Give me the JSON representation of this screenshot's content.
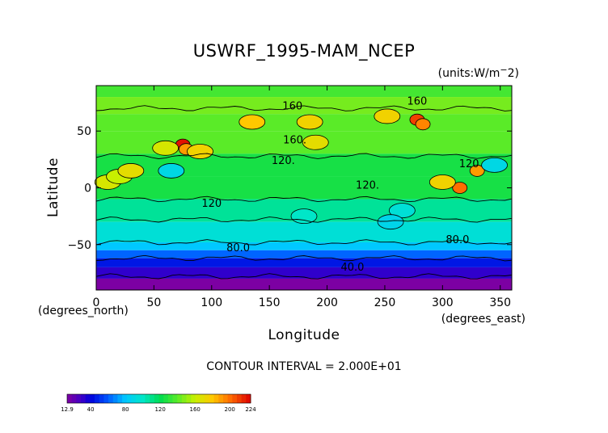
{
  "title": "USWRF_1995-MAM_NCEP",
  "units": "(units:W/m^2)",
  "xlabel": "Longitude",
  "ylabel": "Latitude",
  "x_unit_label": "(degrees_east)",
  "y_unit_label": "(degrees_north)",
  "contour_interval": "CONTOUR INTERVAL = 2.000E+01",
  "chart_data": {
    "type": "heatmap",
    "title": "USWRF_1995-MAM_NCEP",
    "xlabel": "Longitude",
    "ylabel": "Latitude",
    "xlim": [
      0,
      360
    ],
    "ylim": [
      -90,
      90
    ],
    "x_ticks": [
      0,
      50,
      100,
      150,
      200,
      250,
      300,
      350
    ],
    "x_tick_labels": [
      "0",
      "50",
      "100",
      "150",
      "200",
      "250",
      "300",
      "350"
    ],
    "y_ticks": [
      50,
      0,
      -50
    ],
    "y_tick_labels": [
      "50",
      "0",
      "−50"
    ],
    "contour_labels": [
      {
        "text": "160",
        "lon": 170,
        "lat": 72
      },
      {
        "text": "160",
        "lon": 278,
        "lat": 76
      },
      {
        "text": "160.",
        "lon": 172,
        "lat": 42
      },
      {
        "text": "120.",
        "lon": 162,
        "lat": 24
      },
      {
        "text": "120.",
        "lon": 235,
        "lat": 2
      },
      {
        "text": "120",
        "lon": 100,
        "lat": -14
      },
      {
        "text": "120",
        "lon": 323,
        "lat": 21
      },
      {
        "text": "80.0",
        "lon": 123,
        "lat": -53
      },
      {
        "text": "80.0",
        "lon": 313,
        "lat": -46
      },
      {
        "text": "40.0",
        "lon": 222,
        "lat": -70
      }
    ],
    "colorbar": {
      "min": 12.9,
      "max": 224,
      "tick_values": [
        12.9,
        40,
        80,
        120,
        160,
        200,
        224
      ],
      "tick_labels": [
        "12.9",
        "40",
        "80",
        "120",
        "160",
        "200",
        "224"
      ]
    },
    "zonal_bands": [
      {
        "lat_from": 90,
        "lat_to": 80,
        "value": 135
      },
      {
        "lat_from": 80,
        "lat_to": 65,
        "value": 145
      },
      {
        "lat_from": 65,
        "lat_to": 50,
        "value": 140
      },
      {
        "lat_from": 50,
        "lat_to": 30,
        "value": 140
      },
      {
        "lat_from": 30,
        "lat_to": 10,
        "value": 125
      },
      {
        "lat_from": 10,
        "lat_to": -10,
        "value": 125
      },
      {
        "lat_from": -10,
        "lat_to": -30,
        "value": 108
      },
      {
        "lat_from": -30,
        "lat_to": -48,
        "value": 95
      },
      {
        "lat_from": -48,
        "lat_to": -55,
        "value": 80
      },
      {
        "lat_from": -55,
        "lat_to": -62,
        "value": 62
      },
      {
        "lat_from": -62,
        "lat_to": -70,
        "value": 45
      },
      {
        "lat_from": -70,
        "lat_to": -80,
        "value": 32
      },
      {
        "lat_from": -80,
        "lat_to": -90,
        "value": 14
      }
    ],
    "regional_features": [
      {
        "lon": 75,
        "lat": 38,
        "value": 220
      },
      {
        "lon": 78,
        "lat": 34,
        "value": 190
      },
      {
        "lon": 90,
        "lat": 32,
        "value": 175
      },
      {
        "lon": 135,
        "lat": 58,
        "value": 180
      },
      {
        "lon": 185,
        "lat": 58,
        "value": 175
      },
      {
        "lon": 278,
        "lat": 60,
        "value": 210
      },
      {
        "lon": 283,
        "lat": 56,
        "value": 195
      },
      {
        "lon": 252,
        "lat": 63,
        "value": 175
      },
      {
        "lon": 315,
        "lat": 0,
        "value": 200
      },
      {
        "lon": 300,
        "lat": 5,
        "value": 175
      },
      {
        "lon": 330,
        "lat": 15,
        "value": 190
      },
      {
        "lon": 190,
        "lat": 40,
        "value": 170
      },
      {
        "lon": 60,
        "lat": 35,
        "value": 165
      },
      {
        "lon": 10,
        "lat": 5,
        "value": 165
      },
      {
        "lon": 20,
        "lat": 10,
        "value": 160
      },
      {
        "lon": 65,
        "lat": 15,
        "value": 90
      },
      {
        "lon": 30,
        "lat": 15,
        "value": 170
      },
      {
        "lon": 345,
        "lat": 20,
        "value": 90
      },
      {
        "lon": 265,
        "lat": -20,
        "value": 95
      },
      {
        "lon": 255,
        "lat": -30,
        "value": 88
      },
      {
        "lon": 180,
        "lat": -25,
        "value": 100
      }
    ]
  }
}
